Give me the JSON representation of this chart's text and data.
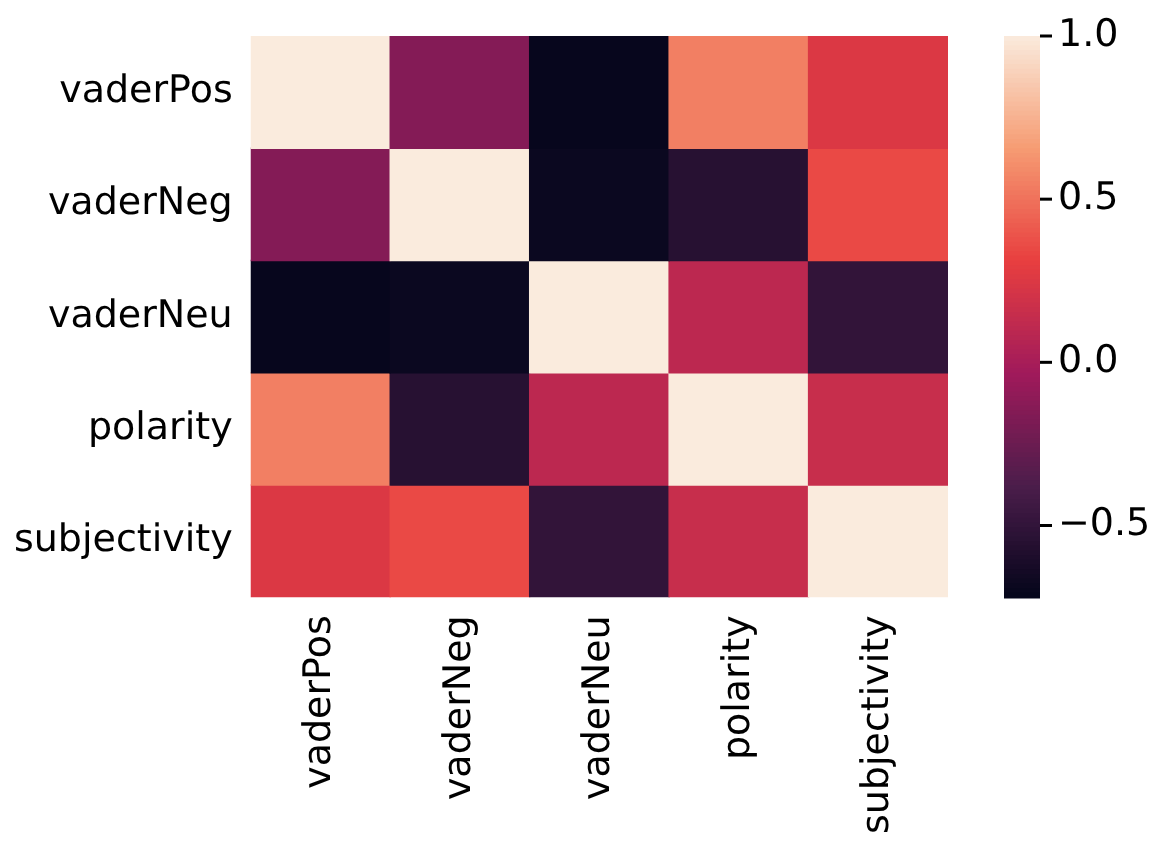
{
  "chart_data": {
    "type": "heatmap",
    "categories": [
      "vaderPos",
      "vaderNeg",
      "vaderNeu",
      "polarity",
      "subjectivity"
    ],
    "y_categories": [
      "vaderPos",
      "vaderNeg",
      "vaderNeu",
      "polarity",
      "subjectivity"
    ],
    "cells": [
      [
        1.0,
        -0.15,
        -0.7,
        0.55,
        0.25
      ],
      [
        -0.15,
        1.0,
        -0.68,
        -0.55,
        0.35
      ],
      [
        -0.7,
        -0.68,
        1.0,
        0.1,
        -0.5
      ],
      [
        0.55,
        -0.55,
        0.1,
        1.0,
        0.15
      ],
      [
        0.25,
        0.35,
        -0.5,
        0.15,
        1.0
      ]
    ],
    "clim": [
      -0.72,
      1.0
    ],
    "cticks": [
      {
        "value": -0.5,
        "label": "−0.5"
      },
      {
        "value": 0,
        "label": "0.0"
      },
      {
        "value": 0.5,
        "label": "0.5"
      },
      {
        "value": 1,
        "label": "1.0"
      }
    ]
  }
}
